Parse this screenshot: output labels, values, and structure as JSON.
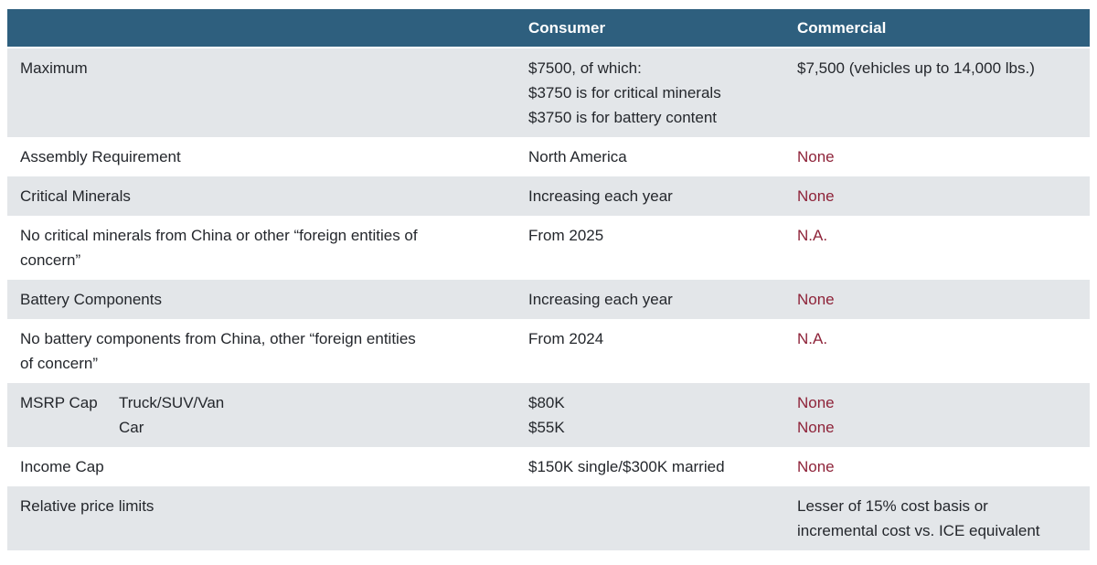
{
  "colors": {
    "header_bg": "#2e5f7e",
    "header_text": "#ffffff",
    "alt_row_bg": "#e3e6e9",
    "body_text": "#24272c",
    "negative_value_text": "#8e2339"
  },
  "table": {
    "header": {
      "feature": "",
      "consumer": "Consumer",
      "commercial": "Commercial"
    },
    "rows": [
      {
        "label": "Maximum",
        "consumer": "$7500, of which:\n$3750 is for critical minerals\n$3750 is for battery content",
        "commercial": "$7,500 (vehicles up to 14,000 lbs.)"
      },
      {
        "label": "Assembly Requirement",
        "consumer": "North America",
        "commercial": "None"
      },
      {
        "label": "Critical Minerals",
        "consumer": "Increasing each year",
        "commercial": "None"
      },
      {
        "label": "No critical minerals from China or other “foreign entities of\nconcern”",
        "consumer": "From 2025",
        "commercial": "N.A."
      },
      {
        "label": "Battery Components",
        "consumer": "Increasing each year",
        "commercial": "None"
      },
      {
        "label": "No battery components from China, other “foreign entities\nof concern”",
        "consumer": "From 2024",
        "commercial": "N.A."
      },
      {
        "label": "MSRP Cap",
        "sublabel": "Truck/SUV/Van\nCar",
        "consumer": "$80K\n$55K",
        "commercial": "None\nNone"
      },
      {
        "label": "Income Cap",
        "consumer": "$150K single/$300K married",
        "commercial": "None"
      },
      {
        "label": "Relative price limits",
        "consumer": "",
        "commercial": "Lesser of 15% cost basis or\nincremental cost vs. ICE equivalent"
      }
    ]
  }
}
